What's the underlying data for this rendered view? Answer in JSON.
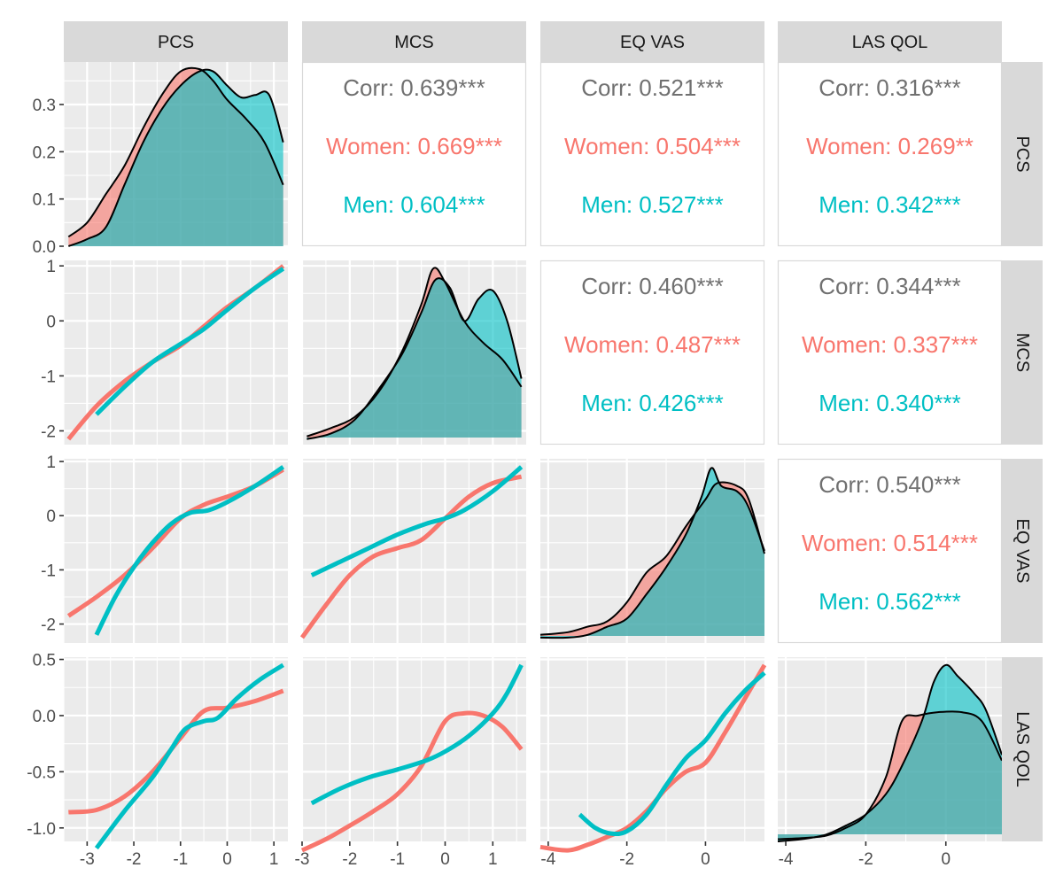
{
  "variables": [
    "PCS",
    "MCS",
    "EQ VAS",
    "LAS QOL"
  ],
  "colors": {
    "women": "#F8766D",
    "men": "#00BFC4",
    "overall": "#707070",
    "panel_bg": "#EBEBEB",
    "grid": "#FFFFFF",
    "strip_bg": "#D9D9D9"
  },
  "chart_data": {
    "type": "pairs-matrix",
    "title": "",
    "groups": [
      "Women",
      "Men"
    ],
    "axis_ticks": {
      "PCS": {
        "range": [
          -3.5,
          1.3
        ],
        "ticks": [
          -3,
          -2,
          -1,
          0,
          1
        ],
        "labels": [
          "-3",
          "-2",
          "-1",
          "0",
          "1"
        ]
      },
      "MCS": {
        "range": [
          -3.0,
          1.7
        ],
        "ticks": [
          -3,
          -2,
          -1,
          0,
          1
        ],
        "labels": [
          "-3",
          "-2",
          "-1",
          "0",
          "1"
        ]
      },
      "EQ VAS": {
        "range": [
          -4.2,
          1.5
        ],
        "ticks": [
          -4,
          -2,
          0
        ],
        "labels": [
          "-4",
          "-2",
          "0"
        ]
      },
      "LAS QOL": {
        "range": [
          -4.2,
          1.4
        ],
        "ticks": [
          -4,
          -2,
          0
        ],
        "labels": [
          "-4",
          "-2",
          "0"
        ]
      }
    },
    "y_axes": {
      "PCS": {
        "range": [
          0,
          0.39
        ],
        "ticks": [
          0,
          0.1,
          0.2,
          0.3
        ],
        "labels": [
          "0.0",
          "0.1",
          "0.2",
          "0.3"
        ]
      },
      "MCS": {
        "range": [
          -2.25,
          1.1
        ],
        "ticks": [
          -2,
          -1,
          0,
          1
        ],
        "labels": [
          "-2",
          "-1",
          "0",
          "1"
        ]
      },
      "EQ VAS": {
        "range": [
          -2.35,
          1.05
        ],
        "ticks": [
          -2,
          -1,
          0,
          1
        ],
        "labels": [
          "-2",
          "-1",
          "0",
          "1"
        ]
      },
      "LAS QOL": {
        "range": [
          -1.12,
          0.52
        ],
        "ticks": [
          -1.0,
          -0.5,
          0.0,
          0.5
        ],
        "labels": [
          "-1.0",
          "-0.5",
          "0.0",
          "0.5"
        ]
      }
    },
    "correlations": [
      {
        "row": "PCS",
        "col": "MCS",
        "lines": [
          "Corr: 0.639***",
          "Women: 0.669***",
          "Men: 0.604***"
        ]
      },
      {
        "row": "PCS",
        "col": "EQ VAS",
        "lines": [
          "Corr: 0.521***",
          "Women: 0.504***",
          "Men: 0.527***"
        ]
      },
      {
        "row": "PCS",
        "col": "LAS QOL",
        "lines": [
          "Corr: 0.316***",
          "Women: 0.269**",
          "Men: 0.342***"
        ]
      },
      {
        "row": "MCS",
        "col": "EQ VAS",
        "lines": [
          "Corr: 0.460***",
          "Women: 0.487***",
          "Men: 0.426***"
        ]
      },
      {
        "row": "MCS",
        "col": "LAS QOL",
        "lines": [
          "Corr: 0.344***",
          "Women: 0.337***",
          "Men: 0.340***"
        ]
      },
      {
        "row": "EQ VAS",
        "col": "LAS QOL",
        "lines": [
          "Corr: 0.540***",
          "Women: 0.514***",
          "Men: 0.562***"
        ]
      }
    ],
    "densities": {
      "PCS": {
        "women": [
          [
            -3.4,
            0.02
          ],
          [
            -3.0,
            0.05
          ],
          [
            -2.6,
            0.11
          ],
          [
            -2.2,
            0.17
          ],
          [
            -1.8,
            0.25
          ],
          [
            -1.4,
            0.32
          ],
          [
            -1.0,
            0.37
          ],
          [
            -0.6,
            0.375
          ],
          [
            -0.3,
            0.35
          ],
          [
            0.0,
            0.31
          ],
          [
            0.4,
            0.27
          ],
          [
            0.8,
            0.22
          ],
          [
            1.2,
            0.13
          ]
        ],
        "men": [
          [
            -3.4,
            0.0
          ],
          [
            -3.0,
            0.015
          ],
          [
            -2.6,
            0.04
          ],
          [
            -2.2,
            0.13
          ],
          [
            -1.8,
            0.22
          ],
          [
            -1.4,
            0.29
          ],
          [
            -1.0,
            0.34
          ],
          [
            -0.6,
            0.37
          ],
          [
            -0.3,
            0.37
          ],
          [
            0.0,
            0.34
          ],
          [
            0.3,
            0.315
          ],
          [
            0.6,
            0.32
          ],
          [
            0.9,
            0.32
          ],
          [
            1.2,
            0.22
          ]
        ]
      },
      "MCS": {
        "women": [
          [
            -2.9,
            -2.1
          ],
          [
            -2.4,
            -1.95
          ],
          [
            -1.9,
            -1.75
          ],
          [
            -1.4,
            -1.3
          ],
          [
            -0.9,
            -0.55
          ],
          [
            -0.5,
            0.3
          ],
          [
            -0.25,
            0.95
          ],
          [
            0.0,
            0.7
          ],
          [
            0.4,
            0.0
          ],
          [
            0.8,
            -0.4
          ],
          [
            1.2,
            -0.7
          ],
          [
            1.6,
            -1.2
          ]
        ],
        "men": [
          [
            -2.9,
            -2.15
          ],
          [
            -2.4,
            -2.05
          ],
          [
            -1.9,
            -1.8
          ],
          [
            -1.4,
            -1.25
          ],
          [
            -0.9,
            -0.6
          ],
          [
            -0.5,
            0.15
          ],
          [
            -0.2,
            0.75
          ],
          [
            0.1,
            0.6
          ],
          [
            0.4,
            0.0
          ],
          [
            0.7,
            0.4
          ],
          [
            1.0,
            0.55
          ],
          [
            1.3,
            0.0
          ],
          [
            1.6,
            -1.05
          ]
        ]
      },
      "EQ VAS": {
        "women": [
          [
            -4.2,
            -2.2
          ],
          [
            -3.5,
            -2.15
          ],
          [
            -3.0,
            -2.05
          ],
          [
            -2.5,
            -1.95
          ],
          [
            -2.0,
            -1.6
          ],
          [
            -1.5,
            -1.05
          ],
          [
            -1.0,
            -0.75
          ],
          [
            -0.5,
            -0.2
          ],
          [
            0.0,
            0.3
          ],
          [
            0.3,
            0.6
          ],
          [
            0.8,
            0.55
          ],
          [
            1.1,
            0.3
          ],
          [
            1.5,
            -0.7
          ]
        ],
        "men": [
          [
            -4.2,
            -2.25
          ],
          [
            -3.5,
            -2.25
          ],
          [
            -3.0,
            -2.2
          ],
          [
            -2.5,
            -2.05
          ],
          [
            -2.0,
            -1.9
          ],
          [
            -1.5,
            -1.45
          ],
          [
            -1.0,
            -0.95
          ],
          [
            -0.5,
            -0.35
          ],
          [
            -0.1,
            0.35
          ],
          [
            0.15,
            0.88
          ],
          [
            0.4,
            0.55
          ],
          [
            0.8,
            0.45
          ],
          [
            1.1,
            0.15
          ],
          [
            1.5,
            -0.65
          ]
        ]
      },
      "LAS QOL": {
        "women": [
          [
            -4.2,
            -1.1
          ],
          [
            -3.6,
            -1.09
          ],
          [
            -3.0,
            -1.07
          ],
          [
            -2.5,
            -1.0
          ],
          [
            -2.0,
            -0.88
          ],
          [
            -1.5,
            -0.55
          ],
          [
            -1.1,
            -0.05
          ],
          [
            -0.7,
            0.0
          ],
          [
            -0.2,
            0.03
          ],
          [
            0.4,
            0.03
          ],
          [
            0.9,
            -0.05
          ],
          [
            1.4,
            -0.4
          ]
        ],
        "men": [
          [
            -4.2,
            -1.12
          ],
          [
            -3.6,
            -1.1
          ],
          [
            -3.0,
            -1.06
          ],
          [
            -2.5,
            -0.98
          ],
          [
            -2.0,
            -0.88
          ],
          [
            -1.5,
            -0.7
          ],
          [
            -1.1,
            -0.45
          ],
          [
            -0.6,
            -0.05
          ],
          [
            -0.3,
            0.3
          ],
          [
            0.0,
            0.45
          ],
          [
            0.3,
            0.35
          ],
          [
            0.7,
            0.2
          ],
          [
            1.0,
            0.05
          ],
          [
            1.4,
            -0.35
          ]
        ]
      }
    },
    "smooths": [
      {
        "row": "MCS",
        "col": "PCS",
        "women": [
          [
            -3.4,
            -2.15
          ],
          [
            -2.8,
            -1.55
          ],
          [
            -2.2,
            -1.1
          ],
          [
            -1.6,
            -0.75
          ],
          [
            -1.0,
            -0.45
          ],
          [
            -0.5,
            -0.1
          ],
          [
            0.0,
            0.25
          ],
          [
            0.6,
            0.6
          ],
          [
            1.2,
            1.0
          ]
        ],
        "men": [
          [
            -2.8,
            -1.7
          ],
          [
            -2.2,
            -1.2
          ],
          [
            -1.6,
            -0.75
          ],
          [
            -1.0,
            -0.42
          ],
          [
            -0.5,
            -0.15
          ],
          [
            0.0,
            0.2
          ],
          [
            0.6,
            0.6
          ],
          [
            1.2,
            0.95
          ]
        ]
      },
      {
        "row": "EQ VAS",
        "col": "PCS",
        "women": [
          [
            -3.4,
            -1.85
          ],
          [
            -2.8,
            -1.5
          ],
          [
            -2.2,
            -1.1
          ],
          [
            -1.6,
            -0.6
          ],
          [
            -1.0,
            -0.05
          ],
          [
            -0.5,
            0.2
          ],
          [
            0.0,
            0.35
          ],
          [
            0.6,
            0.55
          ],
          [
            1.2,
            0.85
          ]
        ],
        "men": [
          [
            -2.8,
            -2.2
          ],
          [
            -2.4,
            -1.5
          ],
          [
            -2.0,
            -0.95
          ],
          [
            -1.6,
            -0.5
          ],
          [
            -1.2,
            -0.15
          ],
          [
            -0.8,
            0.05
          ],
          [
            -0.4,
            0.1
          ],
          [
            0.0,
            0.25
          ],
          [
            0.6,
            0.55
          ],
          [
            1.2,
            0.9
          ]
        ]
      },
      {
        "row": "LAS QOL",
        "col": "PCS",
        "women": [
          [
            -3.4,
            -0.86
          ],
          [
            -2.8,
            -0.84
          ],
          [
            -2.2,
            -0.72
          ],
          [
            -1.6,
            -0.5
          ],
          [
            -1.0,
            -0.2
          ],
          [
            -0.5,
            0.04
          ],
          [
            0.0,
            0.07
          ],
          [
            0.6,
            0.13
          ],
          [
            1.2,
            0.22
          ]
        ],
        "men": [
          [
            -2.8,
            -1.18
          ],
          [
            -2.2,
            -0.85
          ],
          [
            -1.6,
            -0.55
          ],
          [
            -1.2,
            -0.3
          ],
          [
            -0.9,
            -0.12
          ],
          [
            -0.5,
            -0.05
          ],
          [
            -0.2,
            -0.02
          ],
          [
            0.2,
            0.15
          ],
          [
            0.7,
            0.32
          ],
          [
            1.2,
            0.45
          ]
        ]
      },
      {
        "row": "EQ VAS",
        "col": "MCS",
        "women": [
          [
            -3.0,
            -2.25
          ],
          [
            -2.5,
            -1.65
          ],
          [
            -2.0,
            -1.1
          ],
          [
            -1.5,
            -0.75
          ],
          [
            -1.0,
            -0.6
          ],
          [
            -0.5,
            -0.45
          ],
          [
            0.0,
            -0.05
          ],
          [
            0.5,
            0.35
          ],
          [
            1.0,
            0.6
          ],
          [
            1.6,
            0.72
          ]
        ],
        "men": [
          [
            -2.8,
            -1.1
          ],
          [
            -2.2,
            -0.85
          ],
          [
            -1.6,
            -0.6
          ],
          [
            -1.0,
            -0.35
          ],
          [
            -0.4,
            -0.15
          ],
          [
            0.0,
            -0.05
          ],
          [
            0.4,
            0.1
          ],
          [
            1.0,
            0.45
          ],
          [
            1.6,
            0.9
          ]
        ]
      },
      {
        "row": "LAS QOL",
        "col": "MCS",
        "women": [
          [
            -3.0,
            -1.2
          ],
          [
            -2.5,
            -1.1
          ],
          [
            -2.0,
            -0.98
          ],
          [
            -1.5,
            -0.85
          ],
          [
            -1.0,
            -0.7
          ],
          [
            -0.5,
            -0.45
          ],
          [
            0.0,
            -0.05
          ],
          [
            0.4,
            0.02
          ],
          [
            0.8,
            0.0
          ],
          [
            1.2,
            -0.1
          ],
          [
            1.6,
            -0.3
          ]
        ],
        "men": [
          [
            -2.8,
            -0.78
          ],
          [
            -2.2,
            -0.65
          ],
          [
            -1.6,
            -0.55
          ],
          [
            -1.0,
            -0.48
          ],
          [
            -0.4,
            -0.4
          ],
          [
            0.0,
            -0.32
          ],
          [
            0.5,
            -0.18
          ],
          [
            1.0,
            0.02
          ],
          [
            1.3,
            0.2
          ],
          [
            1.6,
            0.45
          ]
        ]
      },
      {
        "row": "LAS QOL",
        "col": "EQ VAS",
        "women": [
          [
            -4.2,
            -1.17
          ],
          [
            -3.5,
            -1.2
          ],
          [
            -3.0,
            -1.15
          ],
          [
            -2.5,
            -1.08
          ],
          [
            -2.0,
            -1.0
          ],
          [
            -1.5,
            -0.85
          ],
          [
            -1.0,
            -0.65
          ],
          [
            -0.5,
            -0.5
          ],
          [
            0.0,
            -0.42
          ],
          [
            0.5,
            -0.15
          ],
          [
            1.0,
            0.15
          ],
          [
            1.5,
            0.45
          ]
        ],
        "men": [
          [
            -3.2,
            -0.88
          ],
          [
            -2.8,
            -1.0
          ],
          [
            -2.4,
            -1.05
          ],
          [
            -2.0,
            -1.03
          ],
          [
            -1.5,
            -0.88
          ],
          [
            -1.0,
            -0.62
          ],
          [
            -0.5,
            -0.38
          ],
          [
            0.0,
            -0.22
          ],
          [
            0.5,
            0.02
          ],
          [
            1.0,
            0.22
          ],
          [
            1.5,
            0.38
          ]
        ]
      }
    ]
  }
}
